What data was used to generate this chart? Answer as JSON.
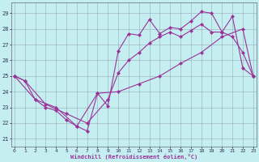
{
  "bg_color": "#c5eef0",
  "grid_color": "#99aabb",
  "line_color": "#993399",
  "xlabel": "Windchill (Refroidissement éolien,°C)",
  "ylim": [
    20.5,
    29.7
  ],
  "xlim": [
    -0.3,
    23.3
  ],
  "yticks": [
    21,
    22,
    23,
    24,
    25,
    26,
    27,
    28,
    29
  ],
  "xticks": [
    0,
    1,
    2,
    3,
    4,
    5,
    6,
    7,
    8,
    9,
    10,
    11,
    12,
    13,
    14,
    15,
    16,
    17,
    18,
    19,
    20,
    21,
    22,
    23
  ],
  "line1_x": [
    0,
    1,
    2,
    3,
    4,
    5,
    6,
    7,
    8,
    9,
    10,
    11,
    12,
    13,
    14,
    15,
    16,
    17,
    18,
    19,
    20,
    21,
    22,
    23
  ],
  "line1_y": [
    25.0,
    24.7,
    23.5,
    23.0,
    22.8,
    22.2,
    21.8,
    21.5,
    23.9,
    23.1,
    26.6,
    27.7,
    27.6,
    28.6,
    27.7,
    28.1,
    28.0,
    28.5,
    29.1,
    29.0,
    27.8,
    28.8,
    25.5,
    25.0
  ],
  "line2_x": [
    0,
    1,
    3,
    5,
    7,
    9,
    10,
    11,
    12,
    13,
    14,
    15,
    16,
    17,
    18,
    19,
    20,
    21,
    22,
    23
  ],
  "line2_y": [
    25.0,
    24.7,
    23.2,
    22.6,
    22.0,
    23.5,
    25.2,
    26.0,
    26.5,
    27.1,
    27.5,
    27.8,
    27.5,
    27.9,
    28.3,
    27.8,
    27.8,
    27.5,
    26.5,
    25.0
  ],
  "line3_x": [
    0,
    2,
    4,
    6,
    8,
    10,
    12,
    14,
    16,
    18,
    20,
    22,
    23
  ],
  "line3_y": [
    25.0,
    23.5,
    23.0,
    21.8,
    23.9,
    24.0,
    24.5,
    25.0,
    25.8,
    26.5,
    27.5,
    28.0,
    25.0
  ]
}
